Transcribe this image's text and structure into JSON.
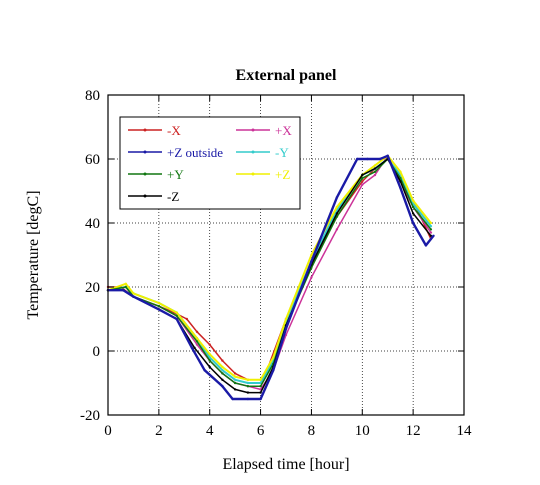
{
  "chart_data": {
    "type": "line",
    "title": "External panel",
    "xlabel": "Elapsed time [hour]",
    "ylabel": "Temperature [degC]",
    "xlim": [
      0,
      14
    ],
    "ylim": [
      -20,
      80
    ],
    "xticks": [
      0,
      2,
      4,
      6,
      8,
      10,
      12,
      14
    ],
    "yticks": [
      -20,
      0,
      20,
      40,
      60,
      80
    ],
    "xtick_labels": [
      "0",
      "2",
      "4",
      "6",
      "8",
      "10",
      "12",
      "14"
    ],
    "ytick_labels": [
      "-20",
      "0",
      "20",
      "40",
      "60",
      "80"
    ],
    "grid": true,
    "grid_style": "dotted",
    "legend_position": "top-left, inside plot, two columns",
    "series": [
      {
        "name": "-X",
        "color": "#cc2222",
        "x": [
          0,
          0.5,
          1,
          2,
          2.6,
          3.1,
          3.5,
          4,
          4.5,
          5,
          5.5,
          6,
          6.3,
          7,
          8,
          9,
          10,
          10.5,
          11,
          11.3,
          12,
          12.7
        ],
        "y": [
          20,
          20,
          17,
          14,
          12,
          10,
          6,
          2,
          -3,
          -7,
          -9,
          -9,
          -5,
          10,
          27,
          42,
          53,
          57,
          60,
          57,
          47,
          35
        ]
      },
      {
        "name": "+X",
        "color": "#cc3399",
        "x": [
          0,
          0.7,
          1,
          2,
          2.7,
          3.5,
          4,
          4.5,
          5,
          5.5,
          6,
          6.5,
          7,
          8,
          9,
          10,
          10.5,
          11,
          11.5,
          12,
          12.7
        ],
        "y": [
          19,
          20,
          17,
          14,
          11,
          2,
          -3,
          -7,
          -10,
          -11,
          -12,
          -6,
          5,
          23,
          38,
          52,
          55,
          61,
          53,
          45,
          37
        ]
      },
      {
        "name": "+Z outside",
        "color": "#1a1aa6",
        "x": [
          0,
          0.6,
          1,
          2,
          2.7,
          3.3,
          3.8,
          4.5,
          4.9,
          5.5,
          6,
          6.5,
          7,
          8,
          9,
          9.8,
          10.2,
          10.7,
          11,
          11.5,
          12,
          12.5,
          12.8
        ],
        "y": [
          19,
          19,
          17,
          13,
          10,
          1,
          -6,
          -11,
          -15,
          -15,
          -15,
          -6,
          7,
          28,
          48,
          60,
          60,
          60,
          61,
          51,
          40,
          33,
          36
        ]
      },
      {
        "name": "-Y",
        "color": "#33cccc",
        "x": [
          0,
          0.7,
          1,
          2,
          2.7,
          3.5,
          4,
          4.5,
          5,
          5.5,
          6,
          6.5,
          7,
          8,
          9,
          10,
          10.5,
          11,
          11.5,
          12,
          12.7
        ],
        "y": [
          19,
          20,
          18,
          15,
          12,
          4,
          -2,
          -6,
          -9,
          -10,
          -10,
          -3,
          9,
          28,
          44,
          55,
          57,
          60,
          55,
          46,
          39
        ]
      },
      {
        "name": "+Y",
        "color": "#117711",
        "x": [
          0,
          0.7,
          1,
          2,
          2.7,
          3.5,
          4,
          4.5,
          5,
          5.5,
          6,
          6.5,
          7,
          8,
          9,
          10,
          10.5,
          11,
          11.5,
          12,
          12.7
        ],
        "y": [
          19,
          20,
          17,
          14,
          11,
          3,
          -3,
          -7,
          -10,
          -11,
          -11,
          -4,
          8,
          26,
          42,
          54,
          56,
          60,
          54,
          45,
          38
        ]
      },
      {
        "name": "+Z",
        "color": "#f0f000",
        "x": [
          0,
          0.7,
          1,
          2,
          2.7,
          3.5,
          4,
          4.5,
          5,
          5.5,
          6,
          6.5,
          7,
          8,
          9,
          10,
          10.5,
          11,
          11.5,
          12,
          12.7
        ],
        "y": [
          19,
          21,
          18,
          15,
          12,
          4,
          -1,
          -5,
          -8,
          -9,
          -9,
          -2,
          10,
          30,
          45,
          55,
          58,
          61,
          56,
          47,
          40
        ]
      },
      {
        "name": "-Z",
        "color": "#000000",
        "x": [
          0,
          0.6,
          1,
          2,
          2.7,
          3.4,
          4,
          4.5,
          5,
          5.5,
          6,
          6.5,
          7,
          8,
          9,
          10,
          10.5,
          11,
          11.5,
          12,
          12.7
        ],
        "y": [
          19,
          19,
          17,
          13,
          10,
          1,
          -5,
          -9,
          -12,
          -13,
          -13,
          -5,
          8,
          27,
          43,
          55,
          57,
          60,
          53,
          43,
          36
        ]
      }
    ],
    "legend_order": [
      "-X",
      "+X",
      "+Z outside",
      "-Y",
      "+Y",
      "+Z",
      "-Z"
    ]
  }
}
